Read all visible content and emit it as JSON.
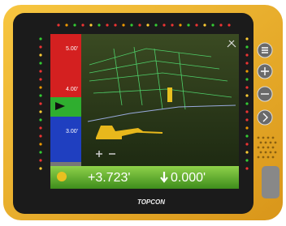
{
  "screen": {
    "scale_labels": [
      "5.00'",
      "4.00'",
      "3.00'"
    ],
    "elevation": "+3.723'",
    "cut_fill": "0.000'"
  },
  "brand": "TOPCON"
}
